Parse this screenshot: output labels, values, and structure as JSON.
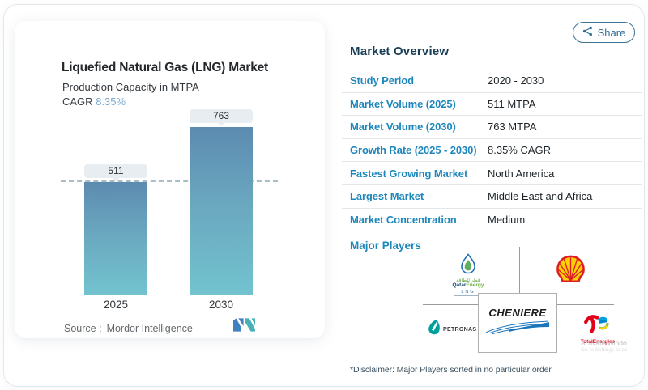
{
  "share": {
    "label": "Share"
  },
  "chart_panel": {
    "title": "Liquefied Natural Gas (LNG) Market",
    "subtitle": "Production Capacity in MTPA",
    "cagr_label": "CAGR",
    "cagr_value": "8.35%",
    "source_label": "Source :",
    "source_value": "Mordor Intelligence"
  },
  "chart_data": {
    "type": "bar",
    "categories": [
      "2025",
      "2030"
    ],
    "values": [
      511,
      763
    ],
    "title": "Liquefied Natural Gas (LNG) Market",
    "ylabel": "Production Capacity in MTPA",
    "cagr": "8.35%",
    "ylim": [
      0,
      800
    ],
    "grid": false,
    "baseline_dashed_at": 511,
    "bar_color_top": "#5c8bb0",
    "bar_color_bottom": "#72c3cf",
    "annotations": [
      "511",
      "763"
    ]
  },
  "overview": {
    "heading": "Market Overview",
    "rows": [
      {
        "label": "Study Period",
        "value": "2020 - 2030"
      },
      {
        "label": "Market Volume (2025)",
        "value": "511 MTPA"
      },
      {
        "label": "Market Volume (2030)",
        "value": "763 MTPA"
      },
      {
        "label": "Growth Rate (2025 - 2030)",
        "value": "8.35% CAGR"
      },
      {
        "label": "Fastest Growing Market",
        "value": "North America"
      },
      {
        "label": "Largest Market",
        "value": "Middle East and Africa"
      },
      {
        "label": "Market Concentration",
        "value": "Medium"
      }
    ],
    "major_players_label": "Major Players",
    "players": {
      "qatar": {
        "arabic": "قطر للطاقة",
        "name_part1": "Qatar",
        "name_part2": "Energy",
        "sub": "LNG"
      },
      "shell": {
        "name": "Shell"
      },
      "cheniere": {
        "name": "CHENIERE"
      },
      "petronas": {
        "name": "PETRONAS"
      },
      "total": {
        "name": "TotalEnergies"
      }
    },
    "disclaimer": "*Disclaimer: Major Players sorted in no particular order"
  },
  "watermark": {
    "line1": "Activate Windo",
    "line2": "Go to Settings to ac"
  },
  "colors": {
    "label_blue": "#1d87bc",
    "heading_navy": "#173c55",
    "cagr_blue": "#7eaacd",
    "share_blue": "#2e6d92",
    "shell_red": "#DD1D21",
    "shell_yellow": "#FBCE07",
    "petronas_teal": "#00A19C",
    "total_red": "#e1001a",
    "cheniere_blue": "#1b75bb",
    "mordor_blue": "#3f80c0",
    "mordor_teal": "#49b1b5"
  }
}
